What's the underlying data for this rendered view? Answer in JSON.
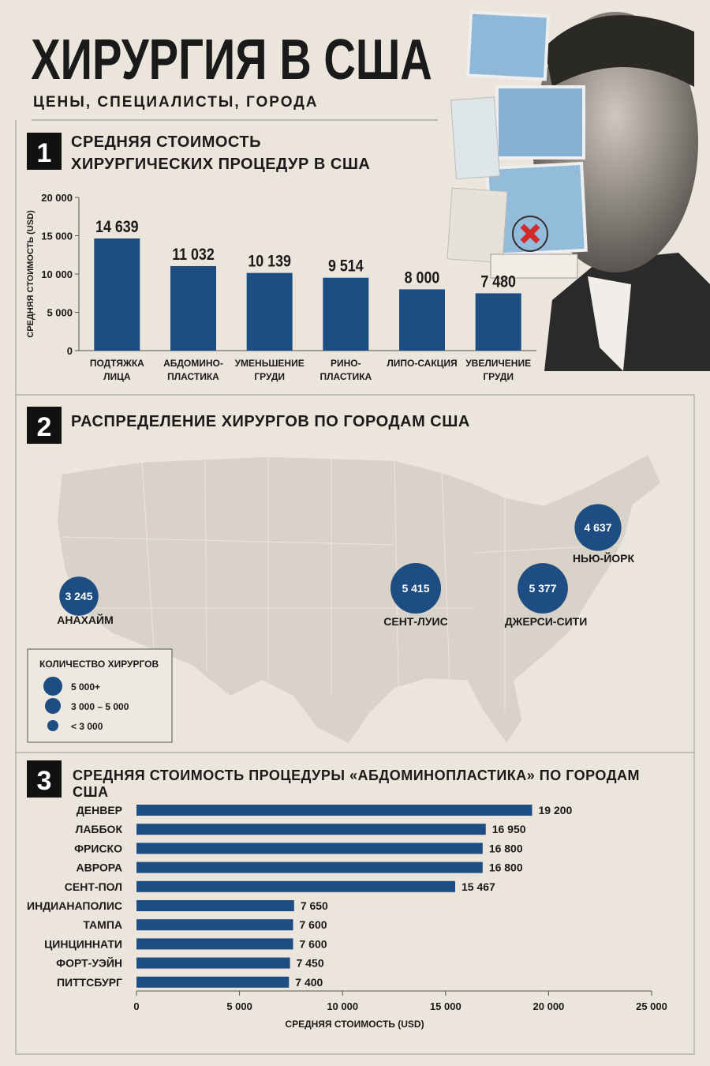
{
  "header": {
    "title": "ХИРУРГИЯ В США",
    "subtitle": "ЦЕНЫ, СПЕЦИАЛИСТЫ, ГОРОДА"
  },
  "chart_data": [
    {
      "type": "bar",
      "number": "1",
      "title": "СРЕДНЯЯ СТОИМОСТЬ ХИРУРГИЧЕСКИХ ПРОЦЕДУР В США",
      "ylabel": "СРЕДНЯЯ СТОИМОСТЬ (USD)",
      "categories": [
        "ПОДТЯЖКА ЛИЦА",
        "АБДОМИНО-ПЛАСТИКА",
        "УМЕНЬШЕНИЕ ГРУДИ",
        "РИНО-ПЛАСТИКА",
        "ЛИПО-САКЦИЯ",
        "УВЕЛИЧЕНИЕ ГРУДИ"
      ],
      "values": [
        14639,
        11032,
        10139,
        9514,
        8000,
        7480
      ],
      "value_labels": [
        "14 639",
        "11 032",
        "10 139",
        "9 514",
        "8 000",
        "7 480"
      ],
      "color": "#1d4d82",
      "ylim": [
        0,
        20000
      ],
      "yticks": [
        0,
        {
          "value": 5000,
          "label": "5 000"
        },
        {
          "value": 10000,
          "label": "10 000"
        },
        {
          "value": 15000,
          "label": "15 000"
        },
        {
          "value": 20000,
          "label": "20 000"
        }
      ]
    },
    {
      "type": "bubble_map",
      "number": "2",
      "title": "РАСПРЕДЕЛЕНИЕ ХИРУРГОВ ПО ГОРОДАМ США",
      "categories": [
        "АНАХАЙМ",
        "СЕНТ-ЛУИС",
        "ДЖЕРСИ-СИТИ",
        "НЬЮ-ЙОРК"
      ],
      "values": [
        3245,
        5415,
        5377,
        4637
      ],
      "value_labels": [
        "3 245",
        "5 415",
        "5 377",
        "4 637"
      ],
      "color": "#1d4d82",
      "legend": {
        "title": "КОЛИЧЕСТВО ХИРУРГОВ",
        "items": [
          "5 000+",
          "3 000 – 5 000",
          "< 3 000"
        ]
      }
    },
    {
      "type": "barh",
      "number": "3",
      "title": "СРЕДНЯЯ СТОИМОСТЬ ПРОЦЕДУРЫ «АБДОМИНОПЛАСТИКА» ПО ГОРОДАМ США",
      "xlabel": "СРЕДНЯЯ СТОИМОСТЬ (USD)",
      "categories": [
        "ДЕНВЕР",
        "ЛАББОК",
        "ФРИСКО",
        "АВРОРА",
        "СЕНТ-ПОЛ",
        "ИНДИАНАПОЛИС",
        "ТАМПА",
        "ЦИНЦИННАТИ",
        "ФОРТ-УЭЙН",
        "ПИТТСБУРГ"
      ],
      "values": [
        19200,
        16950,
        16800,
        16800,
        15467,
        7650,
        7600,
        7600,
        7450,
        7400
      ],
      "value_labels": [
        "19 200",
        "16 950",
        "16 800",
        "16 800",
        "15 467",
        "7 650",
        "7 600",
        "7 600",
        "7 450",
        "7 400"
      ],
      "color": "#1d4d82",
      "xlim": [
        0,
        25000
      ],
      "xticks": [
        0,
        {
          "value": 5000,
          "label": "5 000"
        },
        {
          "value": 10000,
          "label": "10 000"
        },
        {
          "value": 15000,
          "label": "15 000"
        },
        {
          "value": 20000,
          "label": "20 000"
        },
        {
          "value": 25000,
          "label": "25 000"
        }
      ]
    }
  ]
}
